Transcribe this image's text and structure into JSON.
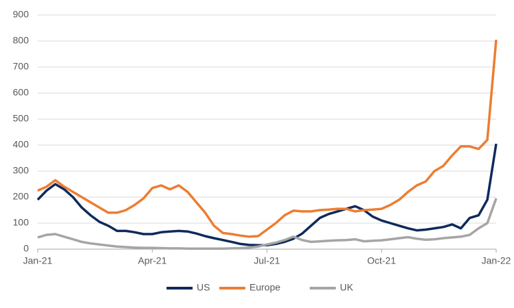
{
  "chart_data": {
    "type": "line",
    "categories": [
      "Jan-21",
      null,
      null,
      null,
      null,
      null,
      null,
      null,
      null,
      null,
      null,
      null,
      null,
      "Apr-21",
      null,
      null,
      null,
      null,
      null,
      null,
      null,
      null,
      null,
      null,
      null,
      null,
      "Jul-21",
      null,
      null,
      null,
      null,
      null,
      null,
      null,
      null,
      null,
      null,
      null,
      null,
      "Oct-21",
      null,
      null,
      null,
      null,
      null,
      null,
      null,
      null,
      null,
      null,
      null,
      null,
      "Jan-22"
    ],
    "series": [
      {
        "name": "US",
        "color": "#0e2a5c",
        "values": [
          190,
          225,
          250,
          230,
          200,
          160,
          130,
          105,
          90,
          70,
          70,
          65,
          58,
          58,
          65,
          68,
          70,
          68,
          60,
          50,
          42,
          35,
          28,
          20,
          16,
          15,
          15,
          20,
          28,
          40,
          60,
          90,
          120,
          135,
          145,
          155,
          165,
          150,
          125,
          110,
          100,
          90,
          80,
          72,
          75,
          80,
          85,
          95,
          80,
          120,
          130,
          190,
          405
        ]
      },
      {
        "name": "Europe",
        "color": "#ed7d31",
        "values": [
          225,
          240,
          265,
          240,
          220,
          200,
          180,
          160,
          140,
          140,
          150,
          170,
          195,
          235,
          245,
          230,
          245,
          220,
          180,
          140,
          90,
          62,
          58,
          52,
          48,
          50,
          75,
          100,
          130,
          148,
          145,
          145,
          150,
          152,
          155,
          155,
          145,
          150,
          152,
          155,
          170,
          190,
          220,
          245,
          260,
          300,
          320,
          360,
          395,
          395,
          385,
          420,
          805
        ]
      },
      {
        "name": "UK",
        "color": "#a5a5a5",
        "values": [
          45,
          55,
          58,
          48,
          38,
          28,
          22,
          18,
          14,
          10,
          8,
          6,
          5,
          5,
          4,
          3,
          3,
          2,
          2,
          2,
          2,
          2,
          3,
          4,
          6,
          10,
          18,
          25,
          35,
          48,
          35,
          28,
          30,
          32,
          34,
          35,
          38,
          30,
          32,
          34,
          38,
          42,
          46,
          40,
          36,
          38,
          42,
          45,
          48,
          55,
          80,
          100,
          195
        ]
      }
    ],
    "ylim": [
      0,
      900
    ],
    "yticks": [
      0,
      100,
      200,
      300,
      400,
      500,
      600,
      700,
      800,
      900
    ],
    "grid": true,
    "legend": "bottom"
  }
}
